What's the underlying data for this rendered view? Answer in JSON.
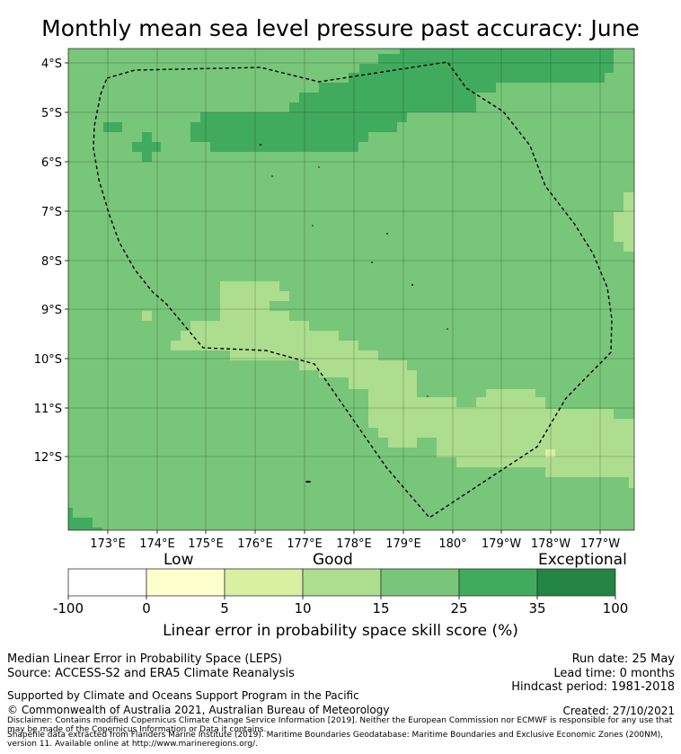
{
  "title": "Monthly mean sea level pressure past accuracy: June",
  "map": {
    "lat_ticks": [
      "4°S",
      "5°S",
      "6°S",
      "7°S",
      "8°S",
      "9°S",
      "10°S",
      "11°S",
      "12°S"
    ],
    "lon_ticks": [
      "173°E",
      "174°E",
      "175°E",
      "176°E",
      "177°E",
      "178°E",
      "179°E",
      "180°",
      "179°W",
      "178°W",
      "177°W"
    ],
    "colors": {
      "c15_25": "#78c679",
      "c25_35": "#41ab5d",
      "c10_15": "#addd8e",
      "boundary": "#000000"
    }
  },
  "colorbar": {
    "words": {
      "low": "Low",
      "good": "Good",
      "exceptional": "Exceptional"
    },
    "ticks": [
      "-100",
      "0",
      "5",
      "10",
      "15",
      "25",
      "35",
      "100"
    ],
    "colors": [
      "#ffffff",
      "#ffffcc",
      "#d9f0a3",
      "#addd8e",
      "#78c679",
      "#41ab5d",
      "#238443"
    ],
    "title": "Linear error in probability space skill score (%)"
  },
  "footer": {
    "left1": "Median Linear Error in Probability Space (LEPS)",
    "left2": "Source: ACCESS-S2 and ERA5 Climate Reanalysis",
    "left3": "Supported by Climate and Oceans Support Program in the Pacific",
    "left4": "© Commonwealth of Australia 2021, Australian Bureau of Meteorology",
    "run_date": "Run date: 25 May",
    "lead_time": "Lead time: 0 months",
    "hindcast": "Hindcast period: 1981-2018",
    "created": "Created: 27/10/2021",
    "disclaimer": "Disclaimer: Contains modified Copernicus Climate Change Service Information [2019]. Neither the European Commission nor ECMWF is responsible for any use that may be made of the Copernicus Information or Data it contains.",
    "shapefile": "Shapefile data extracted from Flanders Marine Institute (2019). Maritime Boundaries Geodatabase: Maritime Boundaries and Exclusive Economic Zones (200NM), version 11. Available online at http://www.marineregions.org/."
  }
}
